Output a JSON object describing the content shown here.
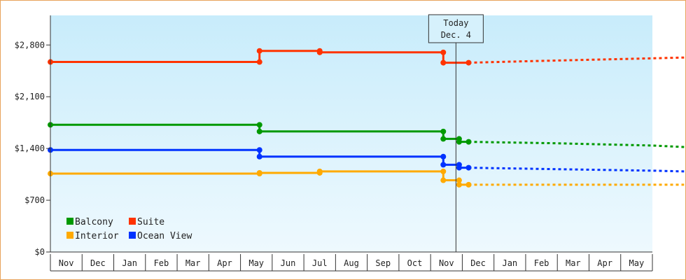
{
  "chart_data": {
    "type": "line",
    "ylim": [
      0,
      3200
    ],
    "y_ticks": [
      "$0",
      "$700",
      "$1,400",
      "$2,100",
      "$2,800"
    ],
    "y_tick_values": [
      0,
      700,
      1400,
      2100,
      2800
    ],
    "month_labels": [
      "Nov",
      "Dec",
      "Jan",
      "Feb",
      "Mar",
      "Apr",
      "May",
      "Jun",
      "Jul",
      "Aug",
      "Sep",
      "Oct",
      "Nov",
      "Dec",
      "Jan",
      "Feb",
      "Mar",
      "Apr",
      "May"
    ],
    "x_start": "Nov 1",
    "today_label_line1": "Today",
    "today_label_line2": "Dec. 4",
    "today_month_index": 12.8,
    "legend": [
      "Balcony",
      "Suite",
      "Interior",
      "Ocean View"
    ],
    "series": [
      {
        "name": "Balcony",
        "color": "#009900",
        "history": [
          [
            0,
            1720
          ],
          [
            6.6,
            1720
          ],
          [
            6.6,
            1630
          ],
          [
            12.4,
            1630
          ],
          [
            12.4,
            1530
          ],
          [
            12.9,
            1530
          ],
          [
            12.9,
            1490
          ],
          [
            13.2,
            1490
          ]
        ],
        "forecast": [
          [
            13.2,
            1490
          ],
          [
            16,
            1470
          ],
          [
            17,
            1460
          ],
          [
            19,
            1440
          ],
          [
            20,
            1420
          ]
        ]
      },
      {
        "name": "Suite",
        "color": "#ff3300",
        "history": [
          [
            0,
            2570
          ],
          [
            6.6,
            2570
          ],
          [
            6.6,
            2720
          ],
          [
            8.5,
            2720
          ],
          [
            8.5,
            2700
          ],
          [
            12.4,
            2700
          ],
          [
            12.4,
            2560
          ],
          [
            13.2,
            2560
          ]
        ],
        "forecast": [
          [
            13.2,
            2560
          ],
          [
            15,
            2580
          ],
          [
            17,
            2600
          ],
          [
            19,
            2620
          ],
          [
            20,
            2630
          ]
        ]
      },
      {
        "name": "Interior",
        "color": "#ffaa00",
        "history": [
          [
            0,
            1060
          ],
          [
            6.6,
            1060
          ],
          [
            6.6,
            1070
          ],
          [
            8.5,
            1070
          ],
          [
            8.5,
            1090
          ],
          [
            12.4,
            1090
          ],
          [
            12.4,
            970
          ],
          [
            12.9,
            970
          ],
          [
            12.9,
            910
          ],
          [
            13.2,
            910
          ]
        ],
        "forecast": [
          [
            13.2,
            910
          ],
          [
            20,
            910
          ]
        ]
      },
      {
        "name": "Ocean View",
        "color": "#0033ff",
        "history": [
          [
            0,
            1380
          ],
          [
            6.6,
            1380
          ],
          [
            6.6,
            1290
          ],
          [
            12.4,
            1290
          ],
          [
            12.4,
            1180
          ],
          [
            12.9,
            1180
          ],
          [
            12.9,
            1140
          ],
          [
            13.2,
            1140
          ]
        ],
        "forecast": [
          [
            13.2,
            1140
          ],
          [
            16,
            1120
          ],
          [
            19,
            1100
          ],
          [
            20,
            1090
          ]
        ]
      }
    ]
  }
}
